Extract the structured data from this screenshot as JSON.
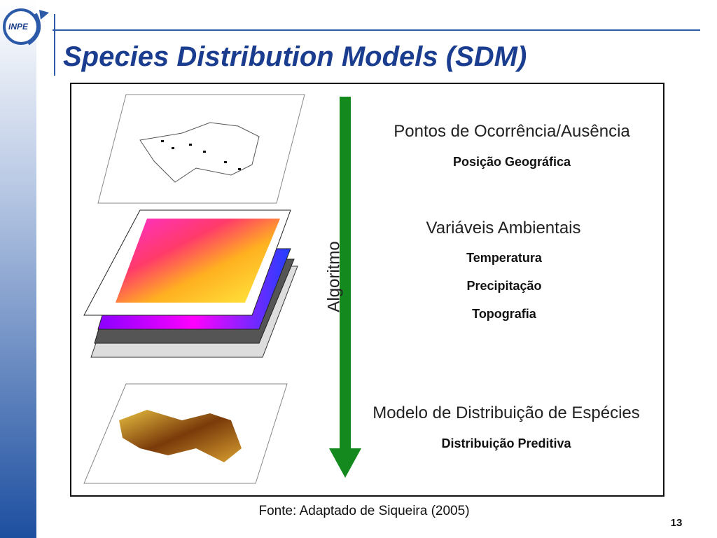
{
  "header": {
    "logo": "INPE",
    "title": "Species Distribution Models (SDM)"
  },
  "figure": {
    "arrow_label": "Algoritmo",
    "sections": [
      {
        "heading": "Pontos de Ocorrência/Ausência",
        "items": [
          "Posição Geográfica"
        ]
      },
      {
        "heading": "Variáveis Ambientais",
        "items": [
          "Temperatura",
          "Precipitação",
          "Topografia"
        ]
      },
      {
        "heading": "Modelo de Distribuição de Espécies",
        "items": [
          "Distribuição Preditiva"
        ]
      }
    ]
  },
  "source": "Fonte: Adaptado de Siqueira (2005)",
  "page_number": "13"
}
